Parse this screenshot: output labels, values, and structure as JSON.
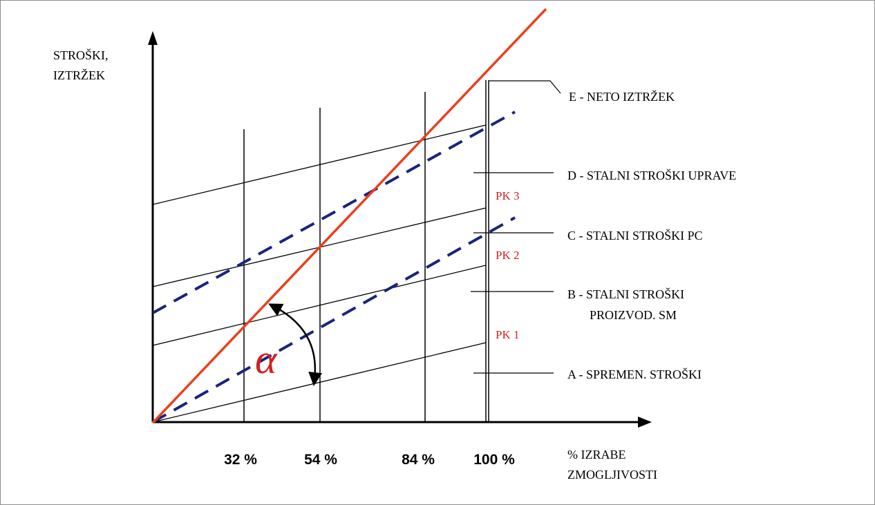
{
  "diagram": {
    "y_axis_label": [
      "STROŠKI,",
      "IZTRŽEK"
    ],
    "x_axis_label": [
      "% IZRABE",
      "ZMOGLJIVOSTI"
    ],
    "x_ticks": [
      "32 %",
      "54 %",
      "84 %",
      "100 %"
    ],
    "legend": {
      "E": "E - NETO IZTRŽEK",
      "D": "D - STALNI STROŠKI UPRAVE",
      "C": "C - STALNI STROŠKI  PC",
      "B_line1": "B - STALNI STROŠKI",
      "B_line2": "PROIZVOD. SM",
      "A": "A - SPREMEN. STROŠKI"
    },
    "pk_labels": [
      "PK 3",
      "PK 2",
      "PK 1"
    ],
    "angle_symbol": "α",
    "colors": {
      "revenue_line": "#e8401c",
      "dashed_lines": "#1a237e",
      "text_red": "#d42020",
      "lines": "#000000"
    }
  }
}
